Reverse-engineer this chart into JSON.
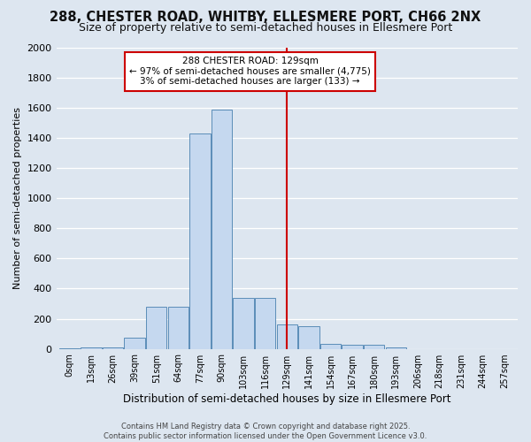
{
  "title": "288, CHESTER ROAD, WHITBY, ELLESMERE PORT, CH66 2NX",
  "subtitle": "Size of property relative to semi-detached houses in Ellesmere Port",
  "xlabel": "Distribution of semi-detached houses by size in Ellesmere Port",
  "ylabel": "Number of semi-detached properties",
  "footer": "Contains HM Land Registry data © Crown copyright and database right 2025.\nContains public sector information licensed under the Open Government Licence v3.0.",
  "bin_labels": [
    "0sqm",
    "13sqm",
    "26sqm",
    "39sqm",
    "51sqm",
    "64sqm",
    "77sqm",
    "90sqm",
    "103sqm",
    "116sqm",
    "129sqm",
    "141sqm",
    "154sqm",
    "167sqm",
    "180sqm",
    "193sqm",
    "206sqm",
    "218sqm",
    "231sqm",
    "244sqm",
    "257sqm"
  ],
  "bar_values": [
    5,
    10,
    10,
    75,
    280,
    280,
    1430,
    1590,
    340,
    340,
    160,
    150,
    30,
    25,
    25,
    10,
    0,
    0,
    0,
    0,
    0
  ],
  "bar_color": "#c5d8ef",
  "bar_edge_color": "#5b8db8",
  "vline_color": "#cc0000",
  "vline_bin": 10,
  "annotation_title": "288 CHESTER ROAD: 129sqm",
  "annotation_line1": "← 97% of semi-detached houses are smaller (4,775)",
  "annotation_line2": "3% of semi-detached houses are larger (133) →",
  "annotation_box_color": "#ffffff",
  "annotation_border_color": "#cc0000",
  "ylim": [
    0,
    2000
  ],
  "yticks": [
    0,
    200,
    400,
    600,
    800,
    1000,
    1200,
    1400,
    1600,
    1800,
    2000
  ],
  "background_color": "#dde6f0",
  "plot_background": "#dde6f0",
  "grid_color": "#ffffff",
  "title_fontsize": 10.5,
  "subtitle_fontsize": 9
}
